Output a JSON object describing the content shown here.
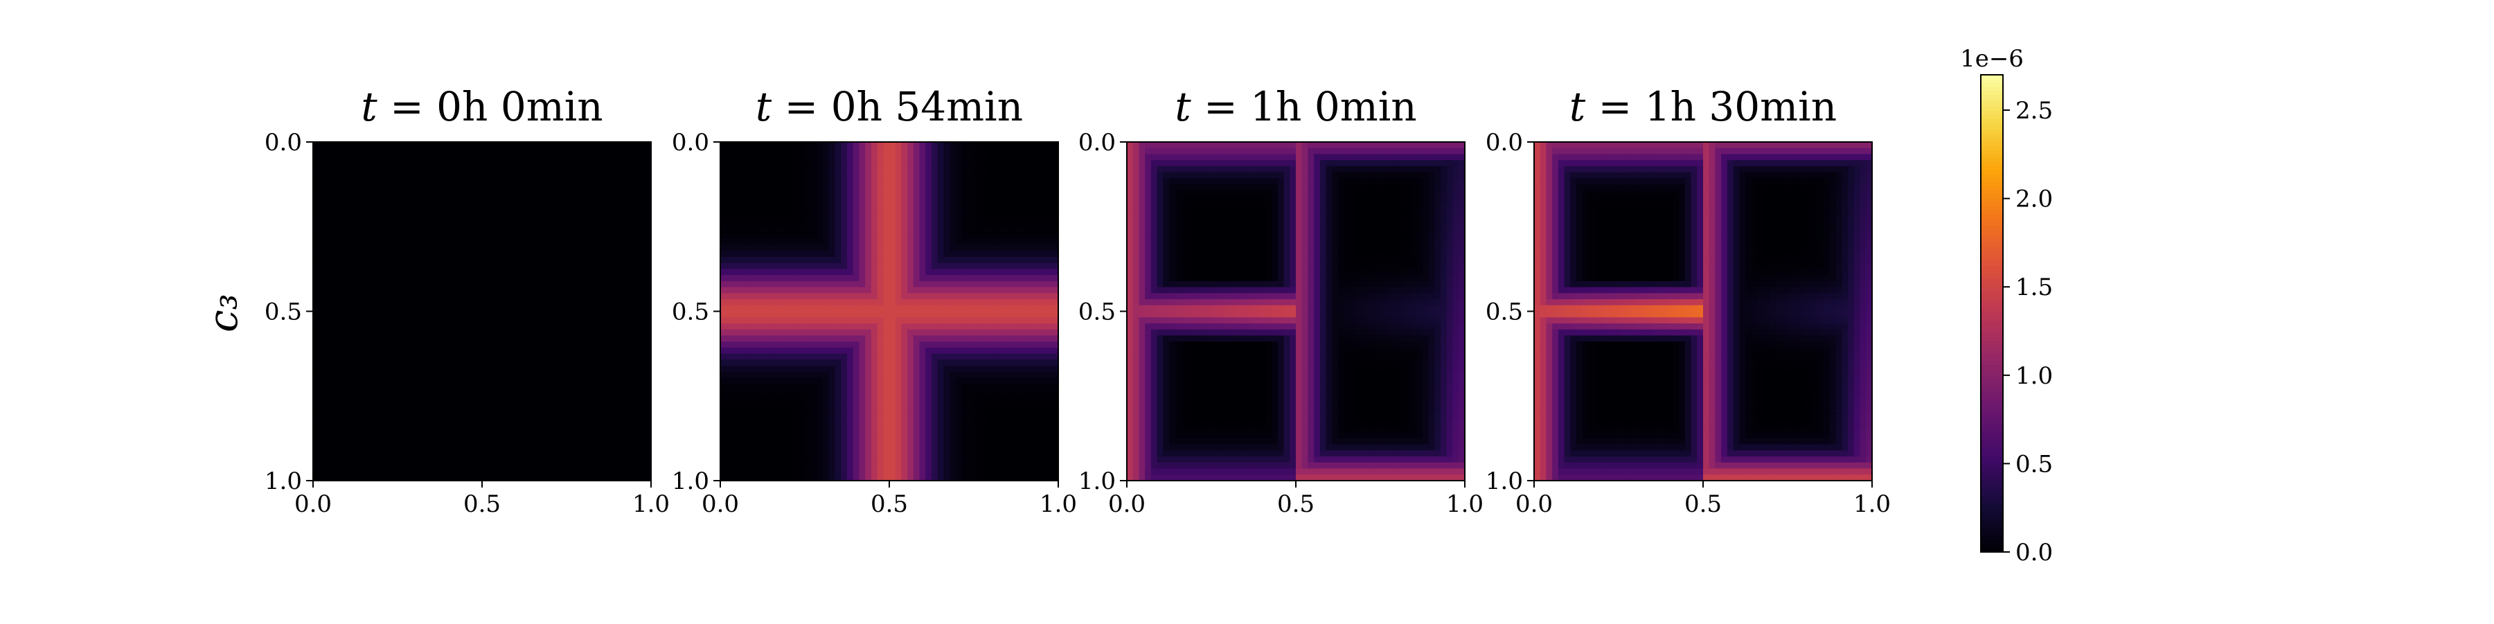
{
  "chart_data": {
    "type": "heatmap",
    "ylabel": "c₃",
    "panels": [
      {
        "title": "t = 0h 0min",
        "title_parts": [
          "t",
          " = 0h 0min"
        ],
        "xlim": [
          0.0,
          1.0
        ],
        "ylim": [
          1.0,
          0.0
        ],
        "xticks": [
          "0.0",
          "0.5",
          "1.0"
        ],
        "yticks": [
          "0.0",
          "0.5",
          "1.0"
        ],
        "field": {
          "kind": "zero"
        }
      },
      {
        "title": "t = 0h 54min",
        "title_parts": [
          "t",
          " = 0h 54min"
        ],
        "xlim": [
          0.0,
          1.0
        ],
        "ylim": [
          1.0,
          0.0
        ],
        "xticks": [
          "0.0",
          "0.5",
          "1.0"
        ],
        "yticks": [
          "0.0",
          "0.5",
          "1.0"
        ],
        "field": {
          "kind": "cross",
          "peak": 1.5e-06,
          "width": 0.08
        }
      },
      {
        "title": "t = 1h 0min",
        "title_parts": [
          "t",
          " = 1h 0min"
        ],
        "xlim": [
          0.0,
          1.0
        ],
        "ylim": [
          1.0,
          0.0
        ],
        "xticks": [
          "0.0",
          "0.5",
          "1.0"
        ],
        "yticks": [
          "0.0",
          "0.5",
          "1.0"
        ],
        "field": {
          "kind": "compartments",
          "peak": 1.6e-06,
          "strip_peak": 1.3e-06
        }
      },
      {
        "title": "t = 1h 30min",
        "title_parts": [
          "t",
          " = 1h 30min"
        ],
        "xlim": [
          0.0,
          1.0
        ],
        "ylim": [
          1.0,
          0.0
        ],
        "xticks": [
          "0.0",
          "0.5",
          "1.0"
        ],
        "yticks": [
          "0.0",
          "0.5",
          "1.0"
        ],
        "field": {
          "kind": "compartments",
          "peak": 2e-06,
          "strip_peak": 1.45e-06
        }
      }
    ],
    "colorbar": {
      "colormap": "inferno",
      "range": [
        0.0,
        2.7e-06
      ],
      "ticks": [
        "0.0",
        "0.5",
        "1.0",
        "1.5",
        "2.0",
        "2.5"
      ],
      "tick_values": [
        0.0,
        0.5,
        1.0,
        1.5,
        2.0,
        2.5
      ],
      "exponent_label": "1e−6"
    }
  }
}
